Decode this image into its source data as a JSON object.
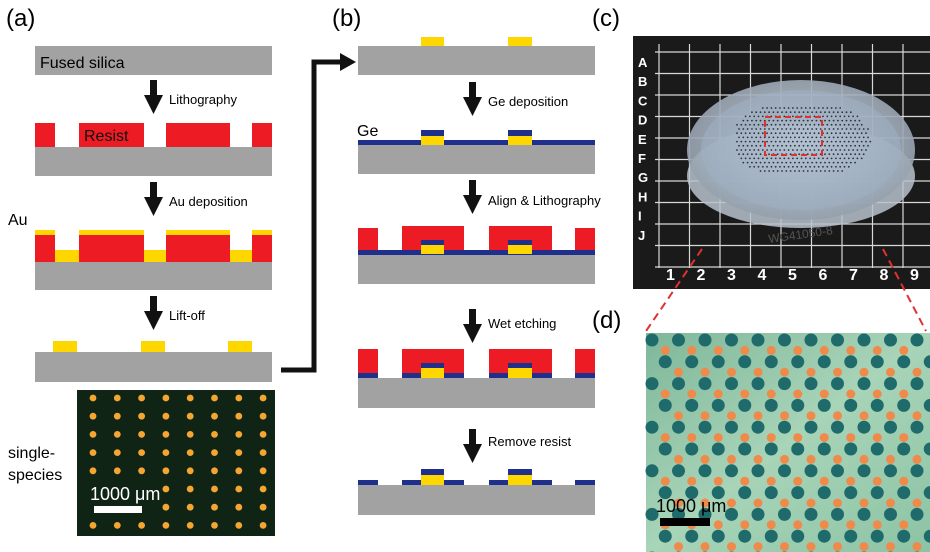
{
  "panels": {
    "a": "(a)",
    "b": "(b)",
    "c": "(c)",
    "d": "(d)"
  },
  "panel_a": {
    "substrate_label": "Fused silica",
    "step1": "Lithography",
    "resist_label": "Resist",
    "step2": "Au deposition",
    "au_label": "Au",
    "step3": "Lift-off",
    "micrograph_caption_line1": "single-",
    "micrograph_caption_line2": "species",
    "scale_bar": "1000 μm"
  },
  "panel_b": {
    "ge_label": "Ge",
    "step1": "Ge deposition",
    "step2": "Align & Lithography",
    "step3": "Wet etching",
    "step4": "Remove resist"
  },
  "panel_c": {
    "grid_rows": [
      "A",
      "B",
      "C",
      "D",
      "E",
      "F",
      "G",
      "H",
      "I",
      "J"
    ],
    "grid_cols": [
      "1",
      "2",
      "3",
      "4",
      "5",
      "6",
      "7",
      "8",
      "9"
    ],
    "wafer_label": "WG41050-8"
  },
  "panel_d": {
    "scale_bar": "1000 μm"
  },
  "colors": {
    "substrate": "#a2a2a2",
    "resist": "#ed1c24",
    "gold": "#ffd700",
    "germanium": "#1f2f8c",
    "micro_bg": "#102416",
    "micro_dot": "#f5a531",
    "d_bg": "#8fc4a4",
    "d_teal": "#1f6b6b",
    "d_orange": "#f08a4b",
    "dashed": "#e03030"
  }
}
